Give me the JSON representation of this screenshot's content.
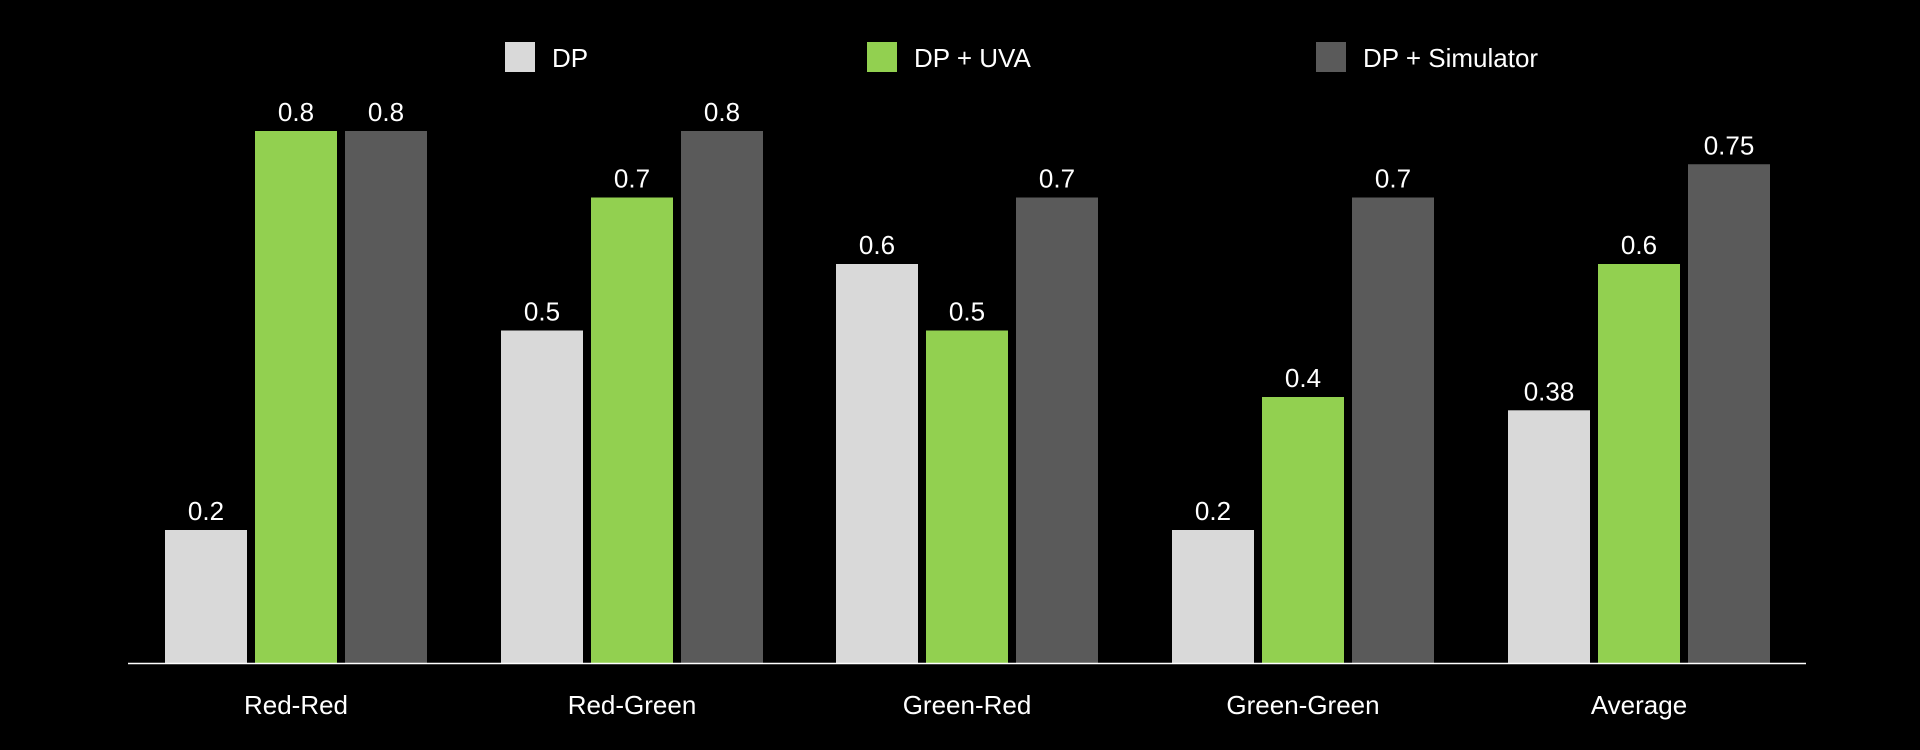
{
  "chart_data": {
    "type": "bar",
    "categories": [
      "Red-Red",
      "Red-Green",
      "Green-Red",
      "Green-Green",
      "Average"
    ],
    "series": [
      {
        "name": "DP",
        "color": "#d9d9d9",
        "values": [
          0.2,
          0.5,
          0.6,
          0.2,
          0.38
        ],
        "labels": [
          "0.2",
          "0.5",
          "0.6",
          "0.2",
          "0.38"
        ]
      },
      {
        "name": "DP + UVA",
        "color": "#92d050",
        "values": [
          0.8,
          0.7,
          0.5,
          0.4,
          0.6
        ],
        "labels": [
          "0.8",
          "0.7",
          "0.5",
          "0.4",
          "0.6"
        ]
      },
      {
        "name": "DP + Simulator",
        "color": "#5a5a5a",
        "values": [
          0.8,
          0.8,
          0.7,
          0.7,
          0.75
        ],
        "labels": [
          "0.8",
          "0.8",
          "0.7",
          "0.7",
          "0.75"
        ]
      }
    ],
    "ylim": [
      0,
      0.8
    ],
    "grid": false,
    "legend_position": "top",
    "background": "#000000",
    "text_color": "#ffffff",
    "axis_color": "#ffffff"
  }
}
